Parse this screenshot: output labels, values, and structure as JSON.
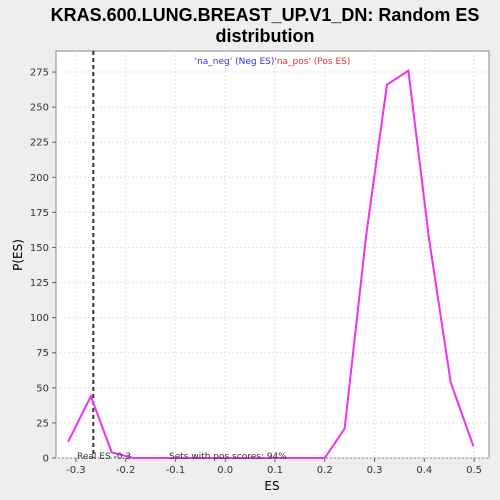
{
  "chart_data": {
    "type": "line",
    "title_line1": "KRAS.600.LUNG.BREAST_UP.V1_DN: Random ES",
    "title_line2": "distribution",
    "xlabel": "ES",
    "ylabel": "P(ES)",
    "xlim": [
      -0.34,
      0.53
    ],
    "ylim": [
      0,
      290
    ],
    "xticks": [
      -0.3,
      -0.2,
      -0.1,
      0.0,
      0.1,
      0.2,
      0.3,
      0.4,
      0.5
    ],
    "xtick_labels": [
      "-0.3",
      "-0.2",
      "-0.1",
      "0.0",
      "0.1",
      "0.2",
      "0.3",
      "0.4",
      "0.5"
    ],
    "yticks": [
      0,
      25,
      50,
      75,
      100,
      125,
      150,
      175,
      200,
      225,
      250,
      275
    ],
    "ytick_labels": [
      "0",
      "25",
      "50",
      "75",
      "100",
      "125",
      "150",
      "175",
      "200",
      "225",
      "250",
      "275"
    ],
    "grid": true,
    "legend": {
      "placement": "top-center",
      "entries": [
        {
          "text": "'na_neg' (Neg ES)",
          "color": "#3333cc"
        },
        {
          "text": "'na_pos' (Pos ES)",
          "color": "#e8302a"
        }
      ]
    },
    "series": [
      {
        "color": "#ee33ee",
        "x": [
          -0.315,
          -0.27,
          -0.228,
          -0.185,
          -0.14,
          -0.1,
          0.0,
          0.1,
          0.2,
          0.24,
          0.283,
          0.325,
          0.368,
          0.41,
          0.453,
          0.498
        ],
        "y": [
          12,
          44,
          4,
          0,
          0,
          0,
          0,
          0,
          0,
          21,
          158,
          266,
          276,
          155,
          54,
          9
        ]
      }
    ],
    "real_es": {
      "x": -0.265,
      "color": "#333333"
    },
    "annotations": {
      "real_es_text": "Real ES -0.3",
      "pos_scores_text": "Sets with pos scores: 94%"
    }
  }
}
